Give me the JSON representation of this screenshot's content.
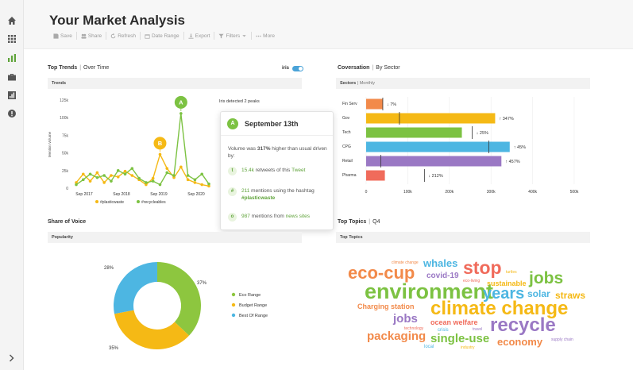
{
  "app": {
    "title": "Your Market Analysis"
  },
  "sidebar": {
    "items": [
      {
        "icon": "home-icon"
      },
      {
        "icon": "apps-grid-icon"
      },
      {
        "icon": "bar-chart-icon",
        "active": true
      },
      {
        "icon": "briefcase-icon"
      },
      {
        "icon": "report-icon"
      },
      {
        "icon": "alert-icon"
      }
    ],
    "expand_icon": "chevron-right-icon"
  },
  "toolbar": {
    "save": "Save",
    "share": "Share",
    "refresh": "Refresh",
    "date_range": "Date Range",
    "export": "Export",
    "filters": "Filters",
    "more": "More"
  },
  "top_trends": {
    "title": "Top Trends",
    "subtitle": "Over Time",
    "toggle_label": "iris",
    "panel_label": "Trends",
    "peaks_label": "Iris detected 2 peaks",
    "chart_data": {
      "type": "line",
      "ylabel": "Mention Volume",
      "yticks": [
        "125k",
        "100k",
        "75k",
        "50k",
        "25k",
        "0"
      ],
      "xticks": [
        "Sep 2017",
        "Sep 2018",
        "Sep 2019",
        "Sep 2020"
      ],
      "ylim": [
        0,
        125000
      ],
      "series": [
        {
          "name": "#plasticwaste",
          "color": "#f5b915",
          "points": [
            [
              0,
              8000
            ],
            [
              1,
              20000
            ],
            [
              2,
              10000
            ],
            [
              3,
              22000
            ],
            [
              4,
              8000
            ],
            [
              5,
              18000
            ],
            [
              6,
              16000
            ],
            [
              7,
              24000
            ],
            [
              8,
              18000
            ],
            [
              9,
              12000
            ],
            [
              10,
              5000
            ],
            [
              11,
              14000
            ],
            [
              12,
              48000
            ],
            [
              13,
              28000
            ],
            [
              14,
              15000
            ],
            [
              15,
              30000
            ],
            [
              16,
              12000
            ],
            [
              17,
              8000
            ],
            [
              18,
              5000
            ],
            [
              19,
              3000
            ]
          ]
        },
        {
          "name": "#recycleables",
          "color": "#7cc242",
          "points": [
            [
              0,
              5000
            ],
            [
              1,
              12000
            ],
            [
              2,
              20000
            ],
            [
              3,
              15000
            ],
            [
              4,
              18000
            ],
            [
              5,
              10000
            ],
            [
              6,
              25000
            ],
            [
              7,
              20000
            ],
            [
              8,
              28000
            ],
            [
              9,
              14000
            ],
            [
              10,
              8000
            ],
            [
              11,
              10000
            ],
            [
              12,
              5000
            ],
            [
              13,
              22000
            ],
            [
              14,
              18000
            ],
            [
              15,
              106000
            ],
            [
              16,
              18000
            ],
            [
              17,
              12000
            ],
            [
              18,
              20000
            ],
            [
              19,
              6000
            ]
          ]
        }
      ],
      "peaks": [
        {
          "label": "A",
          "color": "#7cc242",
          "x": 15,
          "y": 106000
        },
        {
          "label": "B",
          "color": "#f5b915",
          "x": 12,
          "y": 48000
        }
      ]
    },
    "legend": [
      {
        "name": "#plasticwaste",
        "color": "#f5b915"
      },
      {
        "name": "#recycleables",
        "color": "#7cc242"
      }
    ]
  },
  "popover": {
    "badge": "A",
    "date": "September 13th",
    "body_pre": "Volume was ",
    "body_pct": "317%",
    "body_post": " higher than usual driven by:",
    "rows": [
      {
        "icon": "twitter-icon",
        "glyph": "t",
        "value": "15.4k",
        "mid": " retweets of this ",
        "link": "Tweet",
        "after": ""
      },
      {
        "icon": "hashtag-icon",
        "glyph": "#",
        "value": "211",
        "mid": " mentions using the hashtag ",
        "link": "#plasticwaste",
        "after": ""
      },
      {
        "icon": "globe-icon",
        "glyph": "o",
        "value": "987",
        "mid": " mentions from ",
        "link": "news sites",
        "after": ""
      }
    ]
  },
  "coversation": {
    "title": "Coversation",
    "subtitle": "By Sector",
    "panel_label": "Sectors",
    "panel_sub": "Monthly",
    "chart_data": {
      "type": "bar",
      "orientation": "horizontal",
      "categories": [
        "Fin Serv",
        "Gov",
        "Tech",
        "CPG",
        "Retail",
        "Pharma"
      ],
      "values": [
        40000,
        310000,
        230000,
        345000,
        325000,
        45000
      ],
      "markers": [
        40000,
        80000,
        255000,
        295000,
        35000,
        140000
      ],
      "changes": [
        "↓ 7%",
        "↑ 347%",
        "↓ 25%",
        "↑ 45%",
        "↑ 457%",
        "↓ 212%"
      ],
      "colors": [
        "#f28a4a",
        "#f5b915",
        "#7cc242",
        "#4db6e2",
        "#9a78c4",
        "#f06b5b"
      ],
      "xticks": [
        "0",
        "100k",
        "200k",
        "300k",
        "400k",
        "500k"
      ],
      "xlim": [
        0,
        500000
      ]
    }
  },
  "share_of_voice": {
    "title": "Share of Voice",
    "panel_label": "Popularity",
    "chart_data": {
      "type": "pie",
      "labels": [
        "Eco Range",
        "Budget Range",
        "Best Of Range"
      ],
      "values": [
        37,
        35,
        28
      ],
      "value_labels": [
        "37%",
        "35%",
        "28%"
      ],
      "colors": [
        "#8dc63f",
        "#f5b915",
        "#4db6e2"
      ]
    }
  },
  "top_topics": {
    "title": "Top Topics",
    "subtitle": "Q4",
    "panel_label": "Top Topics",
    "words": [
      {
        "t": "climate change",
        "c": "#f28a4a"
      },
      {
        "t": "whales",
        "c": "#4db6e2"
      },
      {
        "t": "stop",
        "c": "#f06b5b"
      },
      {
        "t": "turtles",
        "c": "#f5b915"
      },
      {
        "t": "eco-cup",
        "c": "#f28a4a"
      },
      {
        "t": "covid-19",
        "c": "#9a78c4"
      },
      {
        "t": "jobs",
        "c": "#7cc242"
      },
      {
        "t": "sustainable",
        "c": "#f5b915"
      },
      {
        "t": "eco-living",
        "c": "#f06b5b"
      },
      {
        "t": "environment",
        "c": "#7cc242"
      },
      {
        "t": "years",
        "c": "#4db6e2"
      },
      {
        "t": "solar",
        "c": "#4db6e2"
      },
      {
        "t": "straws",
        "c": "#f5b915"
      },
      {
        "t": "Charging station",
        "c": "#f28a4a"
      },
      {
        "t": "climate change",
        "c": "#f5b915"
      },
      {
        "t": "jobs",
        "c": "#9a78c4"
      },
      {
        "t": "ocean welfare",
        "c": "#f06b5b"
      },
      {
        "t": "recycle",
        "c": "#9a78c4"
      },
      {
        "t": "technology",
        "c": "#f06b5b"
      },
      {
        "t": "crisis",
        "c": "#4db6e2"
      },
      {
        "t": "travel",
        "c": "#9a78c4"
      },
      {
        "t": "packaging",
        "c": "#f28a4a"
      },
      {
        "t": "single-use",
        "c": "#7cc242"
      },
      {
        "t": "economy",
        "c": "#f28a4a"
      },
      {
        "t": "supply chain",
        "c": "#9a78c4"
      },
      {
        "t": "local",
        "c": "#4db6e2"
      },
      {
        "t": "industry",
        "c": "#f5b915"
      }
    ]
  }
}
